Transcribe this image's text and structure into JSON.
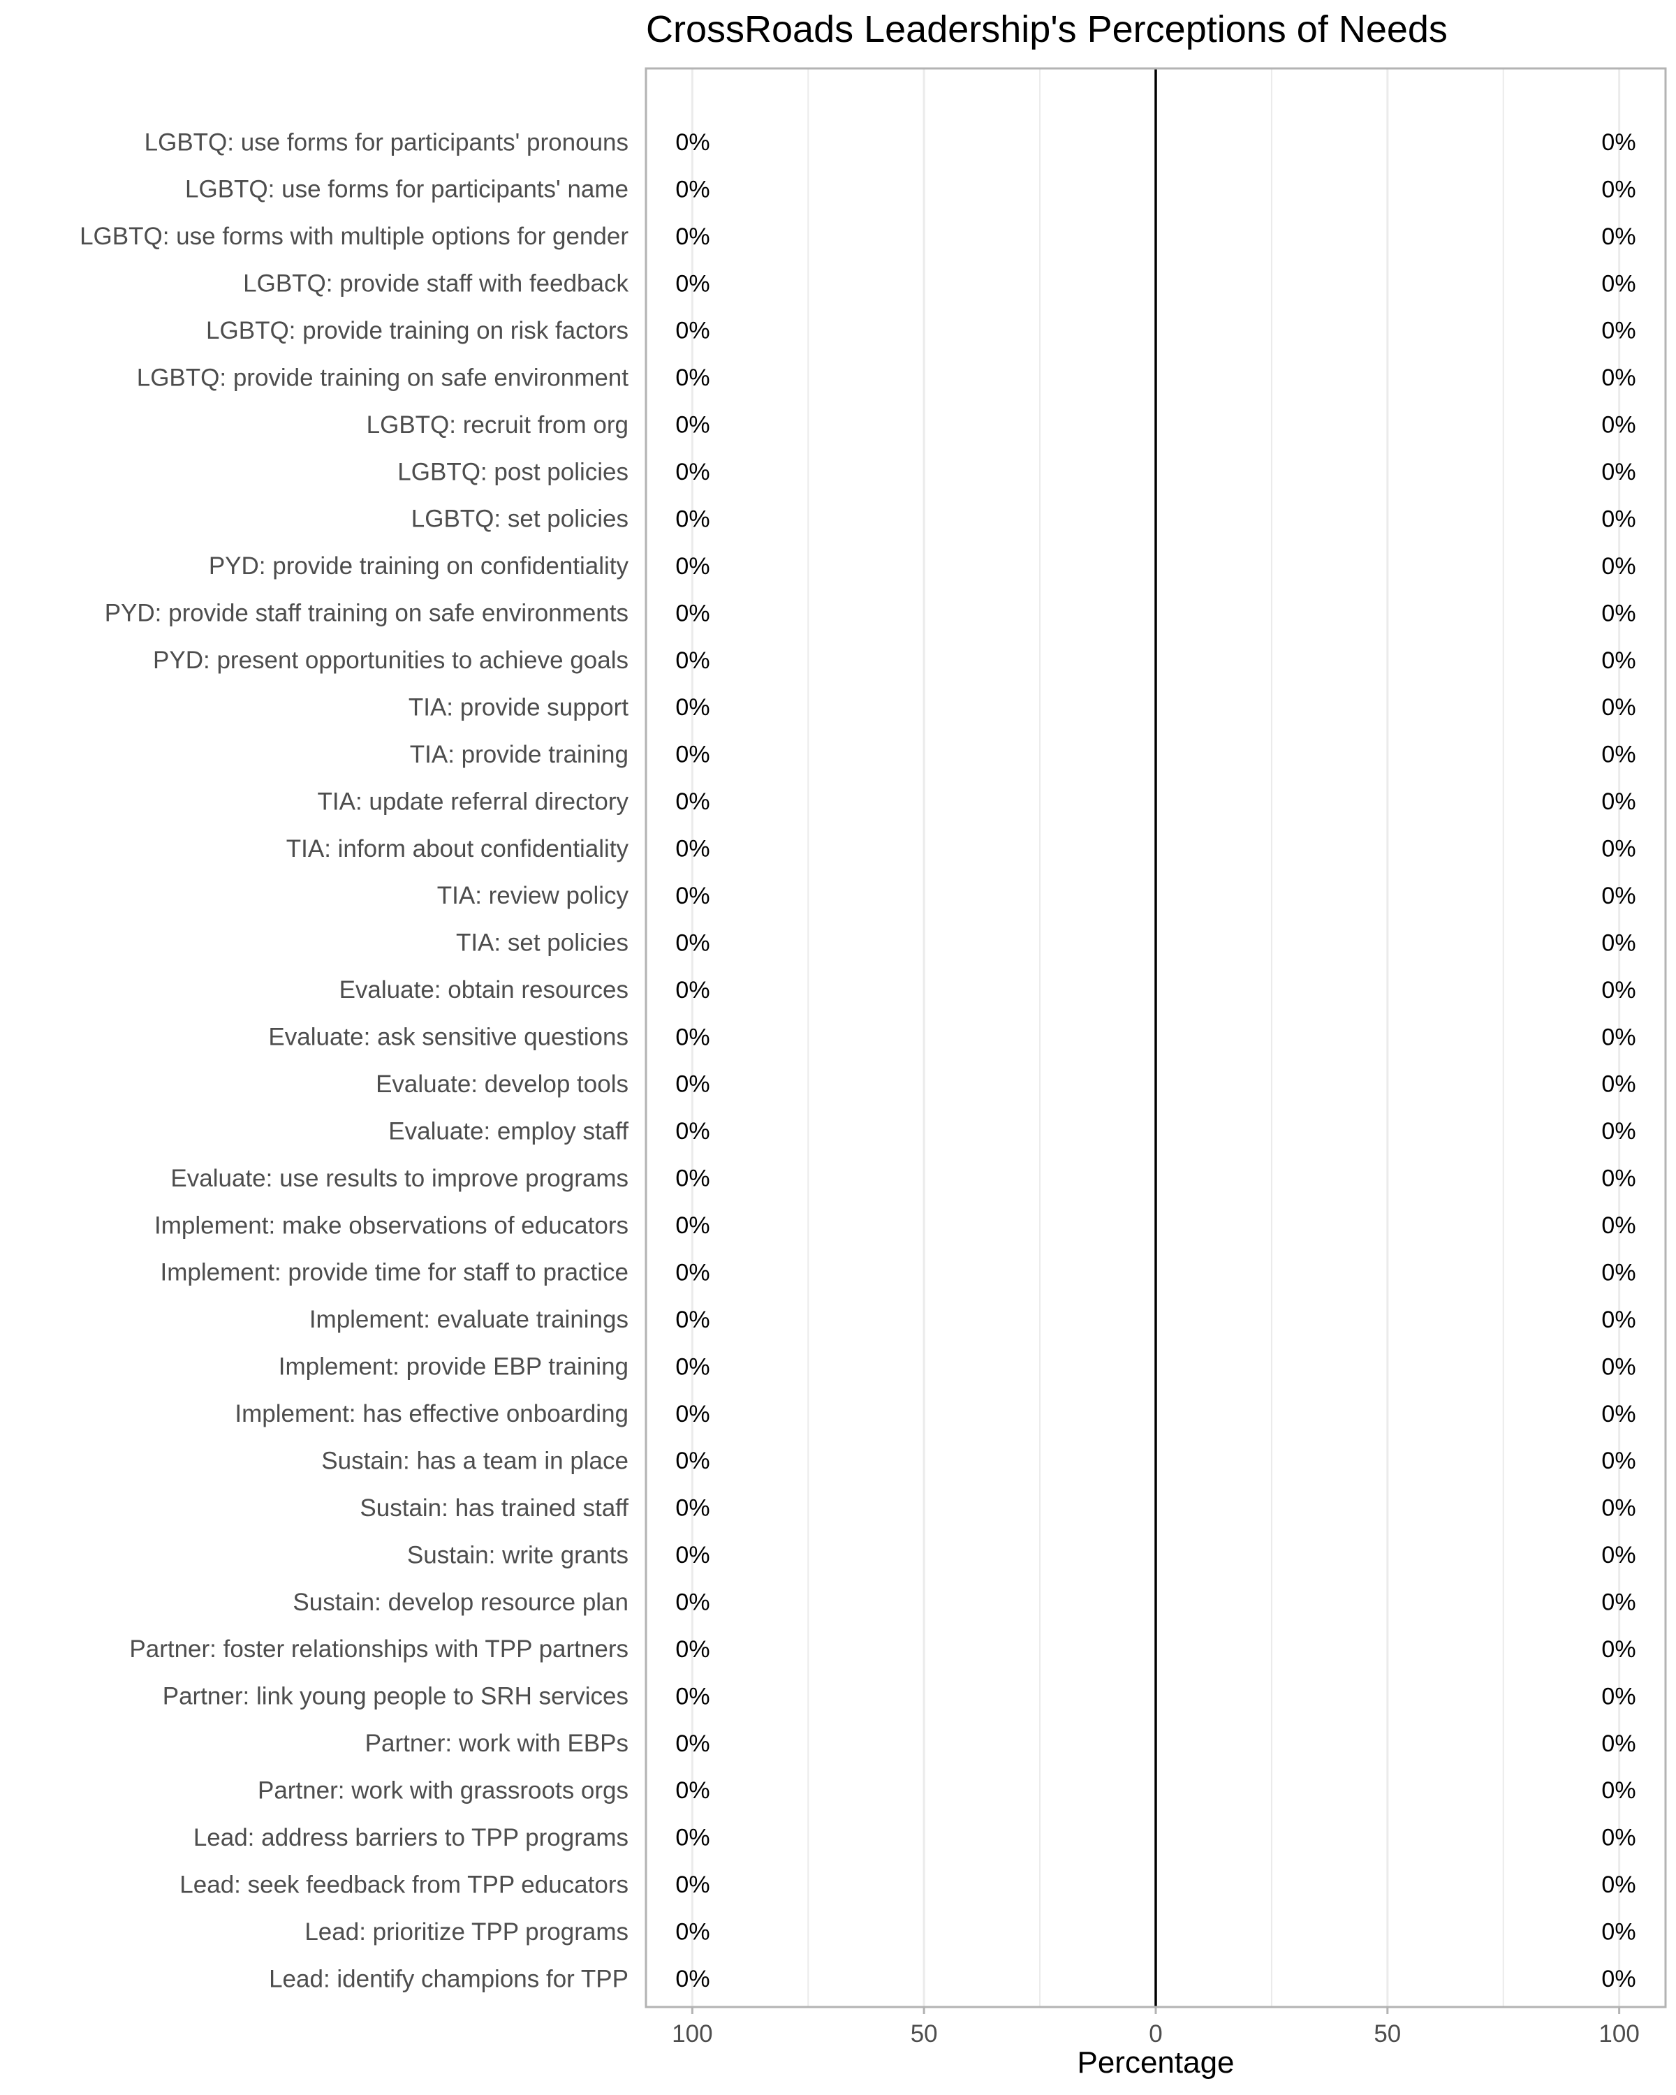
{
  "chart_data": {
    "type": "bar",
    "orientation": "horizontal",
    "layout": "diverging",
    "title": "CrossRoads Leadership's Perceptions of Needs",
    "xlabel": "Percentage",
    "ylabel": "",
    "xlim": [
      -110,
      110
    ],
    "x_ticks": [
      -100,
      -50,
      0,
      50,
      100
    ],
    "x_tick_labels": [
      "100",
      "50",
      "0",
      "50",
      "100"
    ],
    "categories": [
      "LGBTQ: use forms for participants' pronouns",
      "LGBTQ: use forms for participants' name",
      "LGBTQ: use forms with multiple options for gender",
      "LGBTQ: provide staff with feedback",
      "LGBTQ: provide training on risk factors",
      "LGBTQ: provide training on safe environment",
      "LGBTQ: recruit from org",
      "LGBTQ: post policies",
      "LGBTQ: set policies",
      "PYD: provide training on confidentiality",
      "PYD: provide staff training on safe environments",
      "PYD: present opportunities to achieve goals",
      "TIA: provide support",
      "TIA: provide training",
      "TIA: update referral directory",
      "TIA: inform about confidentiality",
      "TIA: review policy",
      "TIA: set policies",
      "Evaluate: obtain resources",
      "Evaluate: ask sensitive questions",
      "Evaluate: develop tools",
      "Evaluate: employ staff",
      "Evaluate: use results to improve programs",
      "Implement: make observations of educators",
      "Implement: provide time for staff to practice",
      "Implement: evaluate trainings",
      "Implement: provide EBP training",
      "Implement: has effective onboarding",
      "Sustain: has a team in place",
      "Sustain: has trained staff",
      "Sustain: write grants",
      "Sustain: develop resource plan",
      "Partner: foster relationships with TPP partners",
      "Partner: link young people to SRH services",
      "Partner: work with EBPs",
      "Partner: work with grassroots orgs",
      "Lead: address barriers to TPP programs",
      "Lead: seek feedback from TPP educators",
      "Lead: prioritize TPP programs",
      "Lead: identify champions for TPP"
    ],
    "left_values": [
      0,
      0,
      0,
      0,
      0,
      0,
      0,
      0,
      0,
      0,
      0,
      0,
      0,
      0,
      0,
      0,
      0,
      0,
      0,
      0,
      0,
      0,
      0,
      0,
      0,
      0,
      0,
      0,
      0,
      0,
      0,
      0,
      0,
      0,
      0,
      0,
      0,
      0,
      0,
      0
    ],
    "right_values": [
      0,
      0,
      0,
      0,
      0,
      0,
      0,
      0,
      0,
      0,
      0,
      0,
      0,
      0,
      0,
      0,
      0,
      0,
      0,
      0,
      0,
      0,
      0,
      0,
      0,
      0,
      0,
      0,
      0,
      0,
      0,
      0,
      0,
      0,
      0,
      0,
      0,
      0,
      0,
      0
    ],
    "value_suffix": "%",
    "grid": true,
    "legend": "none",
    "colors": {
      "background": "#ffffff",
      "panel_border": "#b3b3b3",
      "grid": "#ebebeb",
      "zero_line": "#000000",
      "text": "#4d4d4d",
      "title": "#000000"
    }
  }
}
